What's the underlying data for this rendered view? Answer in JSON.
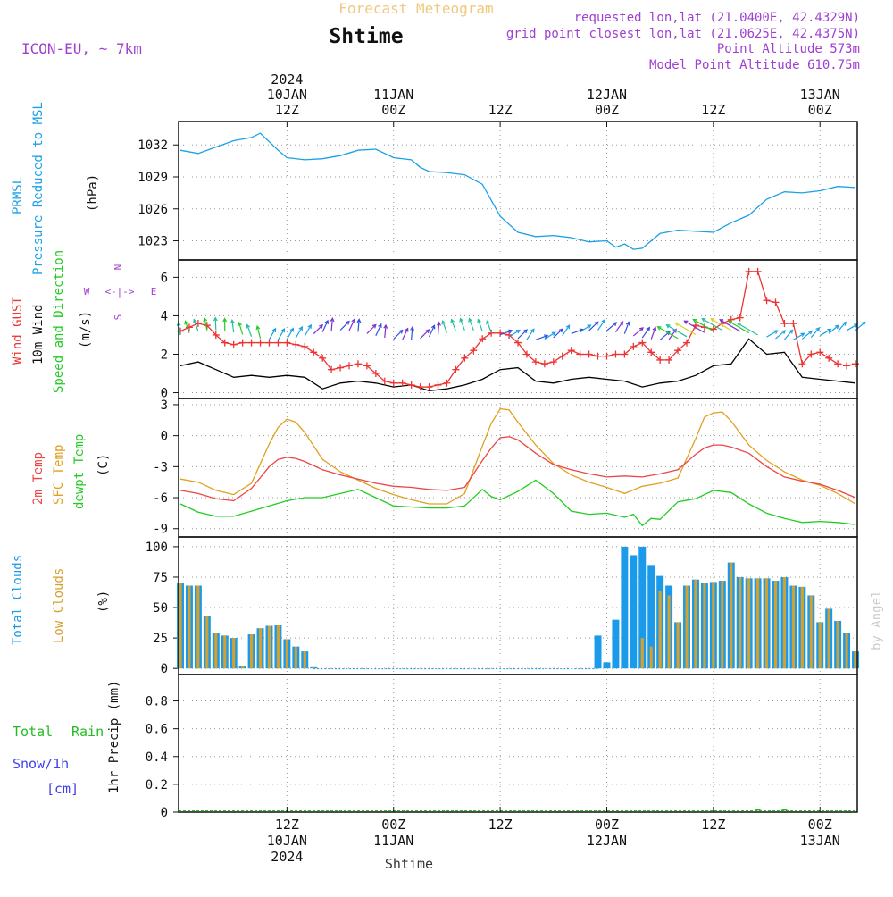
{
  "header": {
    "title": "Forecast Meteogram",
    "location": "Shtime",
    "model": "ICON-EU, ~ 7km",
    "requested": "requested lon,lat (21.0400E, 42.4329N)",
    "gridpoint": "grid point closest lon,lat (21.0625E, 42.4375N)",
    "point_alt": "Point Altitude 573m",
    "model_alt": "Model Point Altitude 610.75m",
    "credit": "by Angel",
    "footer_location": "Shtime"
  },
  "time_axis": {
    "top": [
      {
        "hour": 12,
        "lines": [
          "2024",
          "10JAN",
          "12Z"
        ]
      },
      {
        "hour": 24,
        "lines": [
          "11JAN",
          "00Z"
        ]
      },
      {
        "hour": 36,
        "lines": [
          "12Z"
        ]
      },
      {
        "hour": 48,
        "lines": [
          "12JAN",
          "00Z"
        ]
      },
      {
        "hour": 60,
        "lines": [
          "12Z"
        ]
      },
      {
        "hour": 72,
        "lines": [
          "13JAN",
          "00Z"
        ]
      }
    ],
    "bottom": [
      {
        "hour": 12,
        "lines": [
          "12Z",
          "10JAN",
          "2024"
        ]
      },
      {
        "hour": 24,
        "lines": [
          "00Z",
          "11JAN"
        ]
      },
      {
        "hour": 36,
        "lines": [
          "12Z"
        ]
      },
      {
        "hour": 48,
        "lines": [
          "00Z",
          "12JAN"
        ]
      },
      {
        "hour": 60,
        "lines": [
          "12Z"
        ]
      },
      {
        "hour": 72,
        "lines": [
          "00Z",
          "13JAN"
        ]
      }
    ]
  },
  "panels": {
    "pressure": {
      "label1": "PRMSL",
      "label2": "Pressure Reduced to MSL",
      "unit": "(hPa)",
      "ticks": [
        "1023",
        "1026",
        "1029",
        "1032"
      ]
    },
    "wind": {
      "label_gust": "Wind GUST",
      "label_wind": "10m Wind",
      "label_dir": "Speed and Direction",
      "unit": "(m/s)",
      "ticks": [
        "0",
        "2",
        "4",
        "6"
      ],
      "compass": {
        "n": "N",
        "s": "S",
        "w": "W",
        "e": "E",
        "arrows": "<-|->"
      }
    },
    "temp": {
      "label1": "2m Temp",
      "label2": "SFC Temp",
      "label3": "dewpt Temp",
      "unit": "(C)",
      "ticks": [
        "-9",
        "-6",
        "-3",
        "0",
        "3"
      ]
    },
    "clouds": {
      "label1": "Total Clouds",
      "label2": "Low Clouds",
      "unit": "(%)",
      "ticks": [
        "0",
        "25",
        "50",
        "75",
        "100"
      ]
    },
    "precip": {
      "label1": "Total",
      "label1b": "Rain",
      "label2": "Snow/1h",
      "label3": "[cm]",
      "axis_label": "1hr Precip (mm)",
      "ticks": [
        "0",
        "0.2",
        "0.4",
        "0.6",
        "0.8"
      ]
    }
  },
  "colors": {
    "pressure": "#1aa0e6",
    "gust": "#ee3333",
    "wind": "#000000",
    "temp2m": "#ee4444",
    "sfc": "#e0a020",
    "dewpt": "#22cc22",
    "total_clouds": "#1a9ae8",
    "low_clouds": "#d4a030",
    "rain": "#22bb22",
    "snow": "#4040ee",
    "header_title": "#f0c880",
    "header_info": "#a040d0"
  },
  "chart_data": [
    {
      "type": "line",
      "name": "PRMSL",
      "x_unit": "forecast hour (0 = 10JAN 01Z approx)",
      "x": [
        0,
        2,
        4,
        6,
        8,
        9,
        10,
        11,
        12,
        14,
        16,
        18,
        20,
        22,
        24,
        26,
        27,
        28,
        30,
        32,
        34,
        36,
        38,
        40,
        42,
        44,
        46,
        48,
        49,
        50,
        51,
        52,
        54,
        56,
        58,
        60,
        62,
        64,
        66,
        68,
        70,
        72,
        74,
        76
      ],
      "y": [
        1031.5,
        1031.2,
        1031.8,
        1032.4,
        1032.7,
        1033.1,
        1032.3,
        1031.5,
        1030.8,
        1030.6,
        1030.7,
        1031.0,
        1031.5,
        1031.6,
        1030.8,
        1030.6,
        1029.9,
        1029.5,
        1029.4,
        1029.2,
        1028.3,
        1025.3,
        1023.8,
        1023.4,
        1023.5,
        1023.3,
        1022.9,
        1023.0,
        1022.4,
        1022.7,
        1022.2,
        1022.3,
        1023.7,
        1024.0,
        1023.9,
        1023.8,
        1024.7,
        1025.4,
        1026.9,
        1027.6,
        1027.5,
        1027.7,
        1028.1,
        1028.0
      ]
    },
    {
      "type": "line",
      "name": "Wind GUST",
      "x": [
        0,
        1,
        2,
        3,
        4,
        5,
        6,
        7,
        8,
        9,
        10,
        11,
        12,
        13,
        14,
        15,
        16,
        17,
        18,
        19,
        20,
        21,
        22,
        23,
        24,
        25,
        26,
        27,
        28,
        29,
        30,
        31,
        32,
        33,
        34,
        35,
        36,
        37,
        38,
        39,
        40,
        41,
        42,
        43,
        44,
        45,
        46,
        47,
        48,
        49,
        50,
        51,
        52,
        53,
        54,
        55,
        56,
        57,
        58,
        59,
        60,
        61,
        62,
        63,
        64,
        65,
        66,
        67,
        68,
        69,
        70,
        71,
        72,
        73,
        74,
        75,
        76
      ],
      "y": [
        3.2,
        3.4,
        3.6,
        3.5,
        3.0,
        2.6,
        2.5,
        2.6,
        2.6,
        2.6,
        2.6,
        2.6,
        2.6,
        2.5,
        2.4,
        2.1,
        1.8,
        1.2,
        1.3,
        1.4,
        1.5,
        1.4,
        1.0,
        0.6,
        0.5,
        0.5,
        0.4,
        0.3,
        0.3,
        0.4,
        0.5,
        1.2,
        1.8,
        2.2,
        2.8,
        3.1,
        3.1,
        3.0,
        2.6,
        2.0,
        1.6,
        1.5,
        1.6,
        1.9,
        2.2,
        2.0,
        2.0,
        1.9,
        1.9,
        2.0,
        2.0,
        2.4,
        2.6,
        2.1,
        1.7,
        1.7,
        2.2,
        2.6,
        3.5,
        3.4,
        3.3,
        3.6,
        3.8,
        3.9,
        6.3,
        6.3,
        4.8,
        4.7,
        3.6,
        3.6,
        1.5,
        2.0,
        2.1,
        1.8,
        1.5,
        1.4,
        1.5
      ]
    },
    {
      "type": "line",
      "name": "10m Wind",
      "x": [
        0,
        2,
        4,
        6,
        8,
        10,
        12,
        14,
        16,
        18,
        20,
        22,
        24,
        26,
        28,
        30,
        32,
        34,
        36,
        38,
        40,
        42,
        44,
        46,
        48,
        50,
        52,
        54,
        56,
        58,
        60,
        62,
        64,
        66,
        68,
        70,
        72,
        74,
        76
      ],
      "y": [
        1.4,
        1.6,
        1.2,
        0.8,
        0.9,
        0.8,
        0.9,
        0.8,
        0.2,
        0.5,
        0.6,
        0.5,
        0.3,
        0.4,
        0.1,
        0.2,
        0.4,
        0.7,
        1.2,
        1.3,
        0.6,
        0.5,
        0.7,
        0.8,
        0.7,
        0.6,
        0.3,
        0.5,
        0.6,
        0.9,
        1.4,
        1.5,
        2.8,
        2.0,
        2.1,
        0.8,
        0.7,
        0.6,
        0.5
      ]
    },
    {
      "type": "line",
      "name": "2m Temp",
      "x": [
        0,
        2,
        4,
        6,
        8,
        10,
        11,
        12,
        13,
        14,
        16,
        18,
        20,
        22,
        24,
        26,
        28,
        30,
        32,
        34,
        35,
        36,
        37,
        38,
        40,
        42,
        44,
        46,
        48,
        50,
        52,
        54,
        56,
        58,
        59,
        60,
        61,
        62,
        64,
        66,
        68,
        70,
        72,
        74,
        76
      ],
      "y": [
        -5.3,
        -5.6,
        -6.1,
        -6.3,
        -5.1,
        -3.0,
        -2.3,
        -2.1,
        -2.2,
        -2.5,
        -3.3,
        -3.8,
        -4.2,
        -4.6,
        -4.9,
        -5.0,
        -5.2,
        -5.3,
        -5.0,
        -2.4,
        -1.2,
        -0.2,
        -0.1,
        -0.4,
        -1.7,
        -2.8,
        -3.3,
        -3.7,
        -4.0,
        -3.9,
        -4.0,
        -3.7,
        -3.3,
        -1.8,
        -1.2,
        -0.9,
        -0.9,
        -1.1,
        -1.7,
        -3.0,
        -4.0,
        -4.4,
        -4.7,
        -5.3,
        -6.0
      ]
    },
    {
      "type": "line",
      "name": "SFC Temp",
      "x": [
        0,
        2,
        4,
        6,
        8,
        10,
        11,
        12,
        13,
        14,
        16,
        18,
        20,
        22,
        24,
        26,
        28,
        30,
        32,
        34,
        35,
        36,
        37,
        38,
        40,
        42,
        44,
        46,
        48,
        50,
        52,
        54,
        56,
        58,
        59,
        60,
        61,
        62,
        64,
        66,
        68,
        70,
        72,
        74,
        76
      ],
      "y": [
        -4.2,
        -4.5,
        -5.3,
        -5.7,
        -4.6,
        -0.8,
        0.8,
        1.6,
        1.3,
        0.3,
        -2.3,
        -3.5,
        -4.3,
        -5.1,
        -5.7,
        -6.2,
        -6.6,
        -6.6,
        -5.6,
        -1.0,
        1.2,
        2.6,
        2.5,
        1.3,
        -0.9,
        -2.7,
        -3.8,
        -4.5,
        -5.0,
        -5.6,
        -4.9,
        -4.6,
        -4.1,
        -0.3,
        1.8,
        2.2,
        2.3,
        1.4,
        -0.9,
        -2.4,
        -3.5,
        -4.3,
        -4.8,
        -5.6,
        -6.6
      ]
    },
    {
      "type": "line",
      "name": "dewpt Temp",
      "x": [
        0,
        2,
        4,
        6,
        8,
        10,
        12,
        14,
        16,
        18,
        20,
        22,
        24,
        26,
        28,
        30,
        32,
        34,
        35,
        36,
        38,
        40,
        42,
        44,
        46,
        48,
        50,
        51,
        52,
        53,
        54,
        56,
        58,
        60,
        62,
        64,
        66,
        68,
        70,
        72,
        74,
        76
      ],
      "y": [
        -6.6,
        -7.4,
        -7.8,
        -7.8,
        -7.3,
        -6.8,
        -6.3,
        -6.0,
        -6.0,
        -5.6,
        -5.2,
        -6.0,
        -6.8,
        -6.9,
        -7.0,
        -7.0,
        -6.8,
        -5.2,
        -5.9,
        -6.2,
        -5.4,
        -4.3,
        -5.6,
        -7.3,
        -7.6,
        -7.5,
        -7.9,
        -7.6,
        -8.7,
        -8.0,
        -8.1,
        -6.4,
        -6.1,
        -5.3,
        -5.5,
        -6.6,
        -7.5,
        -8.0,
        -8.4,
        -8.3,
        -8.4,
        -8.6
      ]
    },
    {
      "type": "bar",
      "name": "Total Clouds",
      "x": [
        0,
        1,
        2,
        3,
        4,
        5,
        6,
        7,
        8,
        9,
        10,
        11,
        12,
        13,
        14,
        15,
        47,
        48,
        49,
        50,
        51,
        52,
        53,
        54,
        55,
        56,
        57,
        58,
        59,
        60,
        61,
        62,
        63,
        64,
        65,
        66,
        67,
        68,
        69,
        70,
        71,
        72,
        73,
        74,
        75,
        76
      ],
      "y": [
        70,
        68,
        68,
        43,
        29,
        27,
        25,
        2,
        28,
        33,
        35,
        36,
        24,
        18,
        14,
        1,
        27,
        5,
        40,
        100,
        93,
        100,
        85,
        76,
        68,
        38,
        68,
        73,
        70,
        71,
        72,
        87,
        75,
        74,
        74,
        74,
        72,
        75,
        68,
        67,
        60,
        38,
        49,
        39,
        29,
        14
      ]
    },
    {
      "type": "bar",
      "name": "Low Clouds",
      "x": [
        0,
        1,
        2,
        3,
        4,
        5,
        6,
        7,
        8,
        9,
        10,
        11,
        12,
        13,
        14,
        15,
        47,
        48,
        49,
        50,
        51,
        52,
        53,
        54,
        55,
        56,
        57,
        58,
        59,
        60,
        61,
        62,
        63,
        64,
        65,
        66,
        67,
        68,
        69,
        70,
        71,
        72,
        73,
        74,
        75,
        76
      ],
      "y": [
        70,
        68,
        68,
        43,
        29,
        27,
        25,
        2,
        28,
        33,
        35,
        36,
        24,
        18,
        14,
        1,
        0,
        0,
        0,
        0,
        0,
        25,
        18,
        64,
        60,
        38,
        68,
        73,
        70,
        71,
        72,
        87,
        75,
        74,
        74,
        74,
        72,
        75,
        68,
        67,
        60,
        38,
        49,
        39,
        29,
        14
      ]
    },
    {
      "type": "bar",
      "name": "1hr Precip",
      "x": [
        65,
        68
      ],
      "y": [
        0.01,
        0.01
      ],
      "ylim": [
        0,
        0.95
      ]
    }
  ]
}
